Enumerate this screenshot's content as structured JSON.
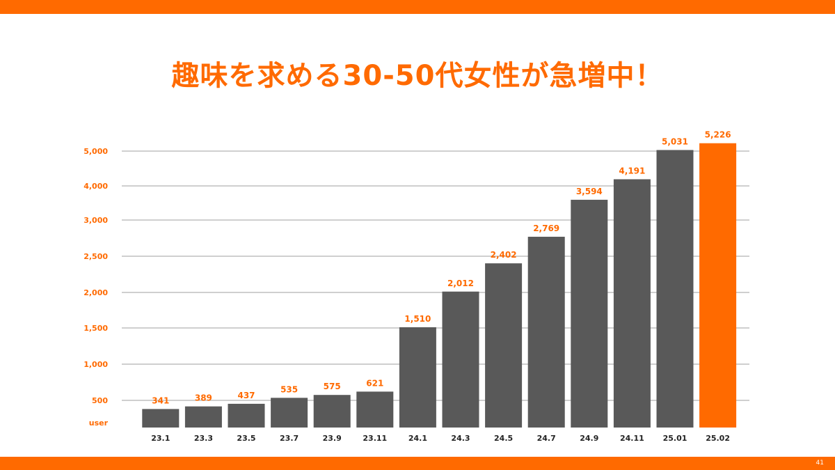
{
  "slide": {
    "title": "趣味を求める30-50代女性が急増中！",
    "page_number": "41"
  },
  "colors": {
    "accent": "#ff6a00",
    "bar": "#595959",
    "highlight_bar": "#ff6a00",
    "grid": "#bfbfbf"
  },
  "chart_data": {
    "type": "bar",
    "title": "",
    "xlabel": "",
    "ylabel": "user",
    "categories": [
      "23.1",
      "23.3",
      "23.5",
      "23.7",
      "23.9",
      "23.11",
      "24.1",
      "24.3",
      "24.5",
      "24.7",
      "24.9",
      "24.11",
      "25.01",
      "25.02"
    ],
    "values": [
      341,
      389,
      437,
      535,
      575,
      621,
      1510,
      2012,
      2402,
      2769,
      3594,
      4191,
      5031,
      5226
    ],
    "data_labels": [
      "341",
      "389",
      "437",
      "535",
      "575",
      "621",
      "1,510",
      "2,012",
      "2,402",
      "2,769",
      "3,594",
      "4,191",
      "5,031",
      "5,226"
    ],
    "yticks": [
      500,
      1000,
      1500,
      2000,
      2500,
      3000,
      4000,
      5000
    ],
    "ytick_labels": [
      "500",
      "1,000",
      "1,500",
      "2,000",
      "2,500",
      "3,000",
      "4,000",
      "5,000"
    ],
    "highlight_category": "25.02",
    "grid": true
  }
}
